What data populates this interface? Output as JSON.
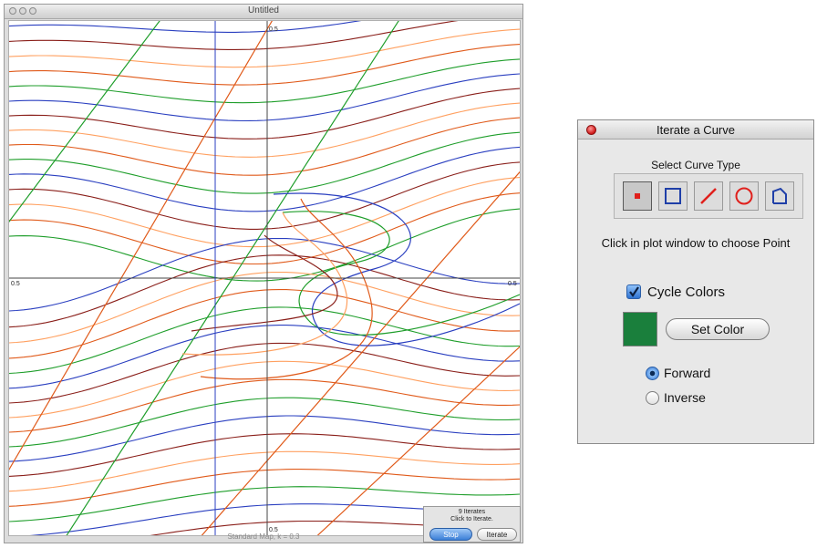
{
  "plot_window": {
    "title": "Untitled",
    "axis_labels": {
      "top": "0.5",
      "bottom": "0.5",
      "left": "0.5",
      "right": "0.5"
    },
    "status": "Standard Map, k = 0.3",
    "iterate_box": {
      "count_text": "9 Iterates",
      "hint_text": "Click to Iterate.",
      "stop_label": "Stop",
      "iterate_label": "Iterate"
    },
    "curve_colors": [
      "#e05a1a",
      "#1f9e2b",
      "#2a3fc0",
      "#8a1f1a",
      "#ffa060"
    ]
  },
  "palette": {
    "title": "Iterate a Curve",
    "group_label": "Select Curve Type",
    "curve_types": [
      {
        "name": "point-icon",
        "selected": true
      },
      {
        "name": "square-icon",
        "selected": false
      },
      {
        "name": "line-icon",
        "selected": false
      },
      {
        "name": "circle-icon",
        "selected": false
      },
      {
        "name": "polygon-icon",
        "selected": false
      }
    ],
    "instruction": "Click in plot window to choose Point",
    "cycle_colors": {
      "label": "Cycle Colors",
      "checked": true
    },
    "color_swatch": "#1a7f3c",
    "set_color_label": "Set Color",
    "direction": {
      "forward_label": "Forward",
      "inverse_label": "Inverse",
      "selected": "Forward"
    }
  }
}
